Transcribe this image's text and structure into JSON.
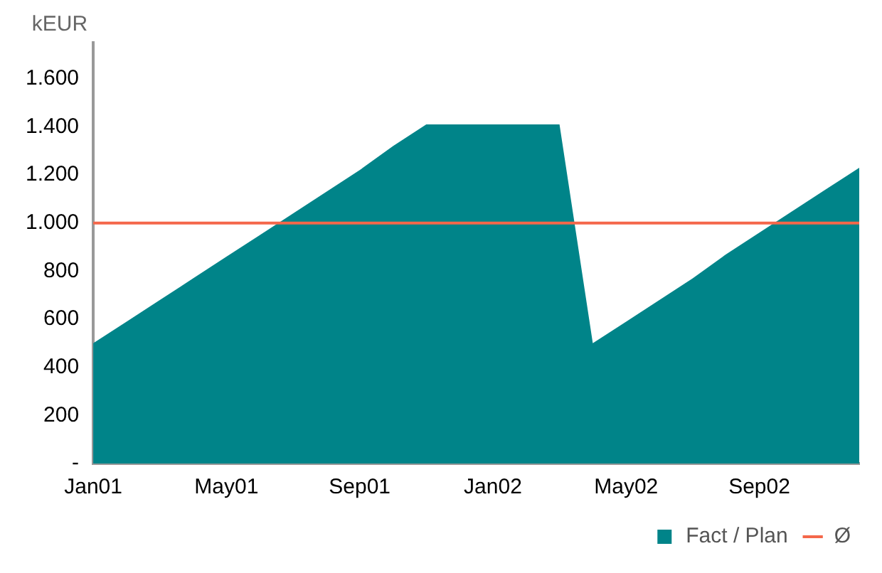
{
  "chart_data": {
    "type": "area",
    "ylabel": "kEUR",
    "categories": [
      "Jan01",
      null,
      null,
      null,
      "May01",
      null,
      null,
      null,
      "Sep01",
      null,
      null,
      null,
      "Jan02",
      null,
      null,
      null,
      "May02",
      null,
      null,
      null,
      "Sep02",
      null,
      null,
      null
    ],
    "series": [
      {
        "name": "Fact / Plan",
        "color": "#008489",
        "values": [
          500,
          590,
          680,
          770,
          860,
          950,
          1040,
          1130,
          1220,
          1320,
          1410,
          1410,
          1410,
          1410,
          1410,
          500,
          590,
          680,
          770,
          870,
          960,
          1050,
          1140,
          1230
        ]
      }
    ],
    "ref_lines": [
      {
        "axis": "y",
        "value": 1000,
        "label": "Ø",
        "color": "#f4674a"
      }
    ],
    "ylim": [
      0,
      1750
    ],
    "yticks": [
      {
        "value": 0,
        "label": "-"
      },
      200,
      400,
      600,
      800,
      {
        "value": 1000,
        "label": "1.000"
      },
      {
        "value": 1200,
        "label": "1.200"
      },
      {
        "value": 1400,
        "label": "1.400"
      },
      {
        "value": 1600,
        "label": "1.600"
      }
    ],
    "grid": false,
    "legend": "bottom right"
  }
}
